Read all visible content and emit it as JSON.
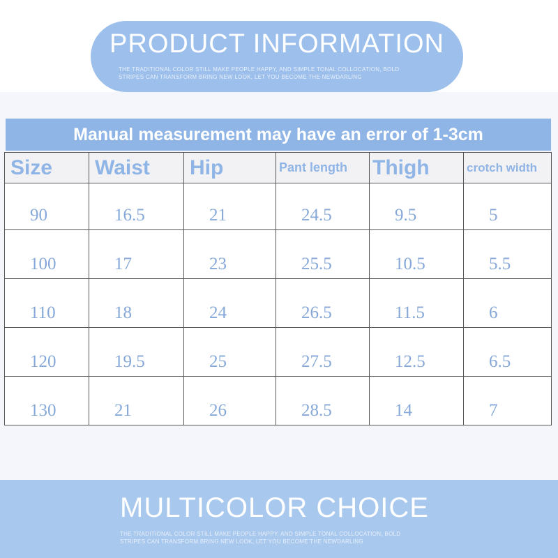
{
  "header": {
    "title": "PRODUCT INFORMATION",
    "subtitle": [
      "THE TRADITIONAL COLOR STILL MAKE PEOPLE HAPPY, AND SIMPLE TONAL COLLOCATION, BOLD",
      "STRIPES CAN TRANSFORM BRING NEW LOOK, LET YOU BECOME THE NEWDARLING"
    ]
  },
  "note": "Manual measurement may have an error of 1-3cm",
  "table": {
    "columns": [
      "Size",
      "Waist",
      "Hip",
      "Pant length",
      "Thigh",
      "crotch width"
    ],
    "rows": [
      [
        "90",
        "16.5",
        "21",
        "24.5",
        "9.5",
        "5"
      ],
      [
        "100",
        "17",
        "23",
        "25.5",
        "10.5",
        "5.5"
      ],
      [
        "110",
        "18",
        "24",
        "26.5",
        "11.5",
        "6"
      ],
      [
        "120",
        "19.5",
        "25",
        "27.5",
        "12.5",
        "6.5"
      ],
      [
        "130",
        "21",
        "26",
        "28.5",
        "14",
        "7"
      ]
    ]
  },
  "footer": {
    "title": "MULTICOLOR CHOICE",
    "subtitle": [
      "THE TRADITIONAL COLOR STILL MAKE PEOPLE HAPPY, AND SIMPLE TONAL COLLOCATION, BOLD",
      "STRIPES CAN TRANSFORM BRING NEW LOOK, LET YOU BECOME THE NEWDARLING"
    ]
  }
}
